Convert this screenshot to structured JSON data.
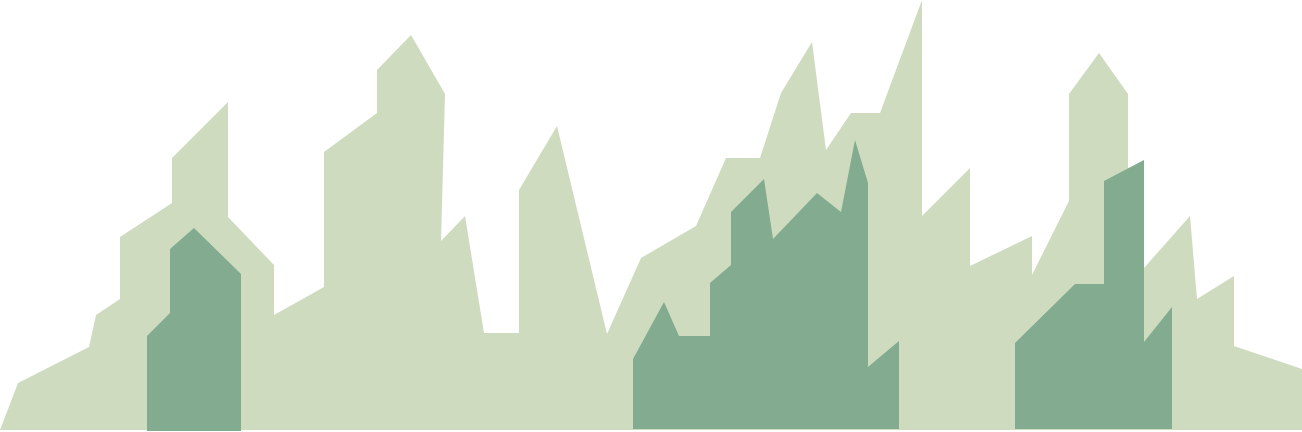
{
  "illustration": {
    "subject": "city-skyline-silhouette",
    "colors": {
      "background": "#ffffff",
      "back_layer": "#cedbbf",
      "front_layer": "#82ab8f"
    }
  }
}
